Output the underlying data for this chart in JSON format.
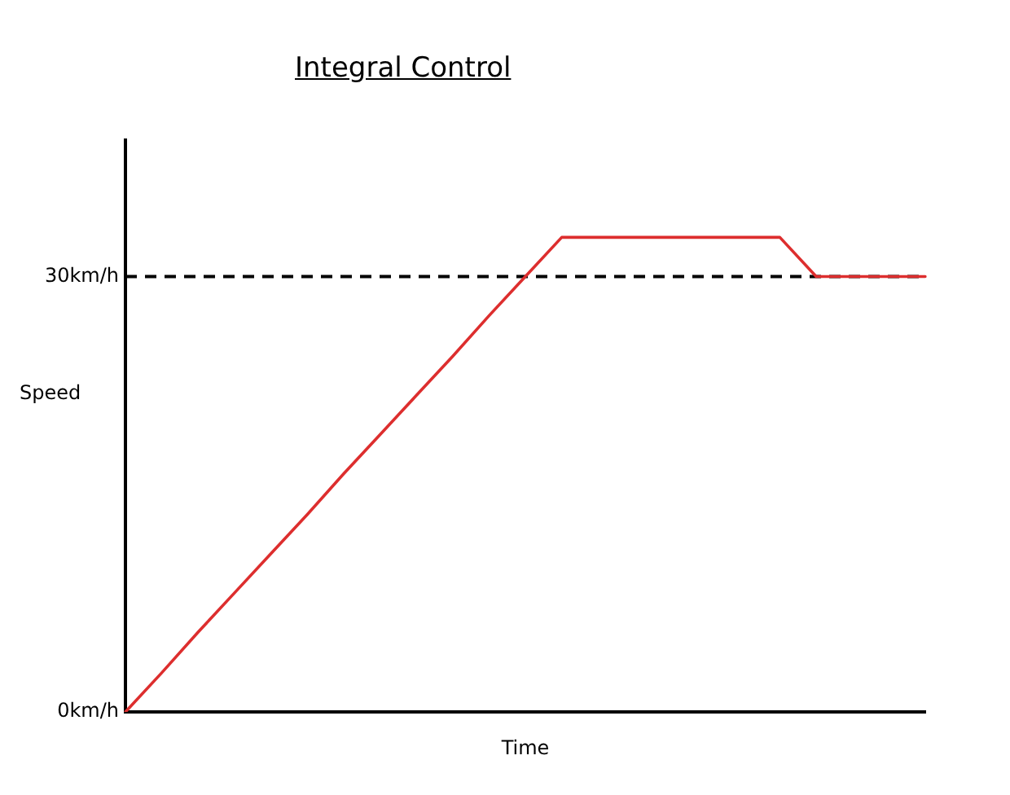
{
  "chart_data": {
    "type": "line",
    "title": "Integral Control",
    "xlabel": "Time",
    "ylabel": "Speed",
    "categories": [
      null,
      null,
      null,
      null,
      null,
      null,
      null,
      null,
      null,
      null,
      null,
      null,
      null,
      null,
      null,
      null,
      null,
      null,
      null,
      null,
      null,
      null,
      null
    ],
    "series": [
      {
        "color": "#dd2e2e",
        "values": [
          0,
          2.7,
          5.5,
          8.2,
          10.9,
          13.6,
          16.4,
          19.1,
          21.8,
          24.5,
          27.3,
          30.0,
          32.7,
          32.7,
          32.7,
          32.7,
          32.7,
          32.7,
          32.7,
          30,
          30,
          30,
          30
        ]
      }
    ],
    "ylim": [
      0,
      39.4
    ],
    "yticks": [
      {
        "value": 0,
        "label": "0km/h"
      },
      {
        "value": 30,
        "label": "30km/h"
      }
    ],
    "ref_lines": [
      {
        "axis": "y",
        "value": 30,
        "color": "#000000",
        "line_style": "dashed"
      }
    ],
    "tick_labels": "y",
    "marker": "none"
  }
}
